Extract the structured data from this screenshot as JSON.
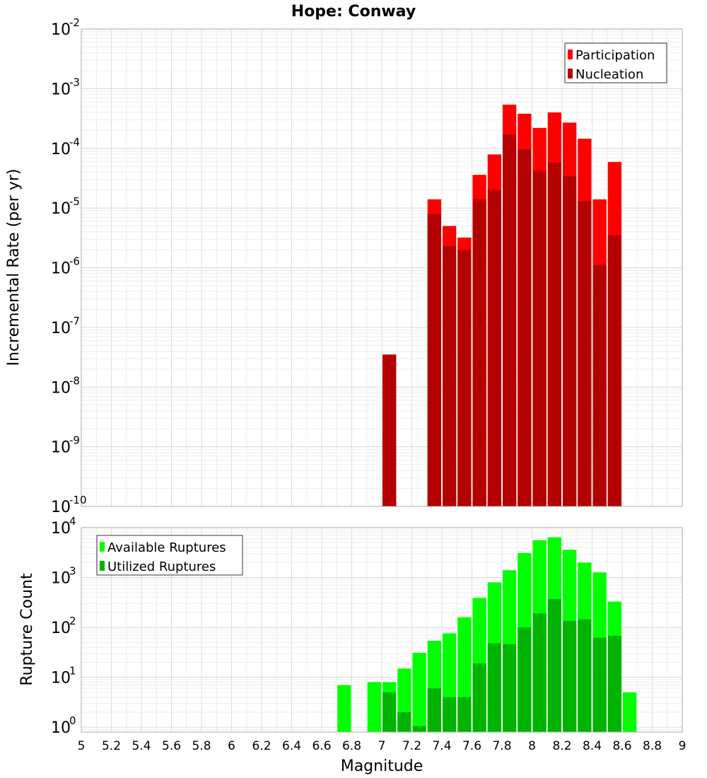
{
  "chart_data": [
    {
      "type": "bar",
      "title": "Hope: Conway",
      "ylabel": "Incremental Rate (per yr)",
      "xlabel": "",
      "yscale": "log",
      "ylim": [
        1e-10,
        0.01
      ],
      "xlim": [
        5,
        9
      ],
      "bar_width": 0.1,
      "grid": true,
      "legend_position": "top-right",
      "yticks": [
        {
          "base": "10",
          "exp": "-2",
          "value": 0.01
        },
        {
          "base": "10",
          "exp": "-3",
          "value": 0.001
        },
        {
          "base": "10",
          "exp": "-4",
          "value": 0.0001
        },
        {
          "base": "10",
          "exp": "-5",
          "value": 1e-05
        },
        {
          "base": "10",
          "exp": "-6",
          "value": 1e-06
        },
        {
          "base": "10",
          "exp": "-7",
          "value": 1e-07
        },
        {
          "base": "10",
          "exp": "-8",
          "value": 1e-08
        },
        {
          "base": "10",
          "exp": "-9",
          "value": 1e-09
        },
        {
          "base": "10",
          "exp": "-10",
          "value": 1e-10
        }
      ],
      "series": [
        {
          "name": "Participation",
          "color": "#ff0000",
          "x": [
            7.05,
            7.35,
            7.45,
            7.55,
            7.65,
            7.75,
            7.85,
            7.95,
            8.05,
            8.15,
            8.25,
            8.35,
            8.45,
            8.55
          ],
          "values": [
            3.5e-08,
            1.4e-05,
            5e-06,
            3.2e-06,
            3.6e-05,
            7.9e-05,
            0.00054,
            0.00038,
            0.00022,
            0.0004,
            0.00027,
            0.000145,
            1.4e-05,
            5.9e-05
          ]
        },
        {
          "name": "Nucleation",
          "color": "#b30000",
          "x": [
            7.05,
            7.35,
            7.45,
            7.55,
            7.65,
            7.75,
            7.85,
            7.95,
            8.05,
            8.15,
            8.25,
            8.35,
            8.45,
            8.55
          ],
          "values": [
            3.5e-08,
            7.9e-06,
            2.3e-06,
            2e-06,
            1.4e-05,
            2e-05,
            0.00017,
            9.6e-05,
            4.2e-05,
            5.8e-05,
            3.4e-05,
            1.3e-05,
            1.1e-06,
            3.5e-06
          ]
        }
      ]
    },
    {
      "type": "bar",
      "title": "",
      "ylabel": "Rupture Count",
      "xlabel": "Magnitude",
      "yscale": "log",
      "ylim": [
        0.8,
        10000
      ],
      "xlim": [
        5,
        9
      ],
      "bar_width": 0.1,
      "grid": true,
      "legend_position": "top-left",
      "xticks": [
        "5",
        "5.2",
        "5.4",
        "5.6",
        "5.8",
        "6",
        "6.2",
        "6.4",
        "6.6",
        "6.8",
        "7",
        "7.2",
        "7.4",
        "7.6",
        "7.8",
        "8",
        "8.2",
        "8.4",
        "8.6",
        "8.8",
        "9"
      ],
      "yticks": [
        {
          "base": "10",
          "exp": "4",
          "value": 10000
        },
        {
          "base": "10",
          "exp": "3",
          "value": 1000
        },
        {
          "base": "10",
          "exp": "2",
          "value": 100
        },
        {
          "base": "10",
          "exp": "1",
          "value": 10
        },
        {
          "base": "10",
          "exp": "0",
          "value": 1
        }
      ],
      "series": [
        {
          "name": "Available Ruptures",
          "color": "#00ff00",
          "x": [
            6.75,
            6.95,
            7.05,
            7.15,
            7.25,
            7.35,
            7.45,
            7.55,
            7.65,
            7.75,
            7.85,
            7.95,
            8.05,
            8.15,
            8.25,
            8.35,
            8.45,
            8.55,
            8.65
          ],
          "values": [
            7,
            8,
            8,
            15,
            31,
            54,
            76,
            160,
            390,
            800,
            1400,
            3100,
            5600,
            6400,
            3600,
            2000,
            1270,
            330,
            5
          ]
        },
        {
          "name": "Utilized Ruptures",
          "color": "#00b300",
          "x": [
            7.05,
            7.15,
            7.25,
            7.35,
            7.45,
            7.55,
            7.65,
            7.75,
            7.85,
            7.95,
            8.05,
            8.15,
            8.25,
            8.35,
            8.45,
            8.55
          ],
          "values": [
            5,
            2,
            1.05,
            6,
            4,
            4,
            19,
            48,
            46,
            100,
            190,
            370,
            135,
            145,
            62,
            68
          ]
        }
      ]
    }
  ]
}
